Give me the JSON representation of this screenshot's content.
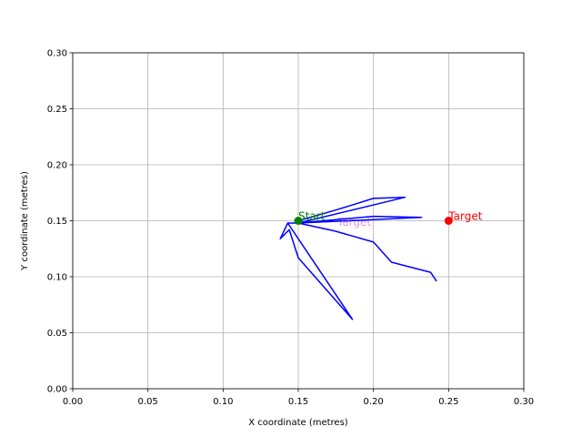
{
  "chart_data": {
    "type": "line",
    "title": "",
    "xlabel": "X coordinate (metres)",
    "ylabel": "Y coordinate (metres)",
    "xlim": [
      0.0,
      0.3
    ],
    "ylim": [
      0.0,
      0.3
    ],
    "xticks": [
      "0.00",
      "0.05",
      "0.10",
      "0.15",
      "0.20",
      "0.25",
      "0.30"
    ],
    "yticks": [
      "0.00",
      "0.05",
      "0.10",
      "0.15",
      "0.20",
      "0.25",
      "0.30"
    ],
    "grid": true,
    "series": [
      {
        "color": "#0000ff",
        "points": [
          [
            0.15,
            0.15
          ],
          [
            0.176,
            0.16
          ],
          [
            0.2,
            0.17
          ],
          [
            0.221,
            0.171
          ],
          [
            0.15,
            0.148
          ],
          [
            0.2,
            0.154
          ],
          [
            0.232,
            0.153
          ],
          [
            0.15,
            0.148
          ],
          [
            0.143,
            0.148
          ],
          [
            0.186,
            0.062
          ],
          [
            0.15,
            0.117
          ],
          [
            0.144,
            0.142
          ],
          [
            0.138,
            0.134
          ],
          [
            0.143,
            0.148
          ],
          [
            0.15,
            0.148
          ],
          [
            0.174,
            0.141
          ],
          [
            0.2,
            0.131
          ],
          [
            0.212,
            0.113
          ],
          [
            0.238,
            0.104
          ],
          [
            0.242,
            0.096
          ]
        ]
      }
    ],
    "markers": [
      {
        "label": "Start",
        "x": 0.15,
        "y": 0.15,
        "color": "#008000"
      },
      {
        "label": "Target",
        "x": 0.25,
        "y": 0.15,
        "color": "#ff0000"
      }
    ],
    "faint_annotation": {
      "label": "Target",
      "x": 0.176,
      "y": 0.148,
      "color": "#cc44cc"
    }
  }
}
